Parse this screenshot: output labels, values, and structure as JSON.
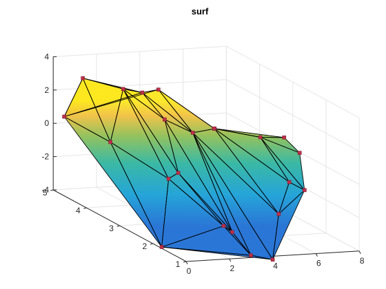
{
  "chart_data": {
    "type": "surface",
    "title": "surf",
    "xlabel": "",
    "ylabel": "",
    "zlabel": "",
    "grid": true,
    "box": false,
    "view": "3d-default",
    "xlim": [
      0,
      8
    ],
    "ylim": [
      1,
      5
    ],
    "zlim": [
      -4,
      4
    ],
    "xticks": [
      0,
      2,
      4,
      6,
      8
    ],
    "yticks": [
      1,
      2,
      3,
      4,
      5
    ],
    "zticks": [
      -4,
      -2,
      0,
      2,
      4
    ],
    "colormap": "parula",
    "marker_color": "#c0304a",
    "edge_color": "#000000",
    "points": [
      {
        "x": 0.2,
        "y": 4.8,
        "z": 0.6
      },
      {
        "x": 0.6,
        "y": 4.5,
        "z": 3.2
      },
      {
        "x": 1.7,
        "y": 4.0,
        "z": 3.0
      },
      {
        "x": 0.8,
        "y": 3.8,
        "z": 0.1
      },
      {
        "x": 3.5,
        "y": 4.6,
        "z": 2.0
      },
      {
        "x": 4.4,
        "y": 4.7,
        "z": 2.0
      },
      {
        "x": 3.0,
        "y": 3.6,
        "z": 1.5
      },
      {
        "x": 4.3,
        "y": 3.6,
        "z": 0.6
      },
      {
        "x": 5.0,
        "y": 3.4,
        "z": 1.0
      },
      {
        "x": 5.9,
        "y": 4.0,
        "z": 0.3
      },
      {
        "x": 1.8,
        "y": 2.7,
        "z": -1.0
      },
      {
        "x": 2.4,
        "y": 2.8,
        "z": -0.8
      },
      {
        "x": 0.1,
        "y": 1.8,
        "z": -4.0
      },
      {
        "x": 2.5,
        "y": 1.5,
        "z": -2.6
      },
      {
        "x": 2.9,
        "y": 1.5,
        "z": -3.0
      },
      {
        "x": 3.3,
        "y": 1.2,
        "z": -4.1
      },
      {
        "x": 4.0,
        "y": 1.0,
        "z": -4.2
      },
      {
        "x": 5.2,
        "y": 1.6,
        "z": -2.2
      },
      {
        "x": 6.3,
        "y": 2.0,
        "z": -0.8
      },
      {
        "x": 6.5,
        "y": 3.0,
        "z": 0.8
      },
      {
        "x": 6.7,
        "y": 1.8,
        "z": -1.1
      },
      {
        "x": 7.7,
        "y": 2.6,
        "z": 0.2
      },
      {
        "x": 7.6,
        "y": 3.0,
        "z": 0.7
      }
    ]
  }
}
